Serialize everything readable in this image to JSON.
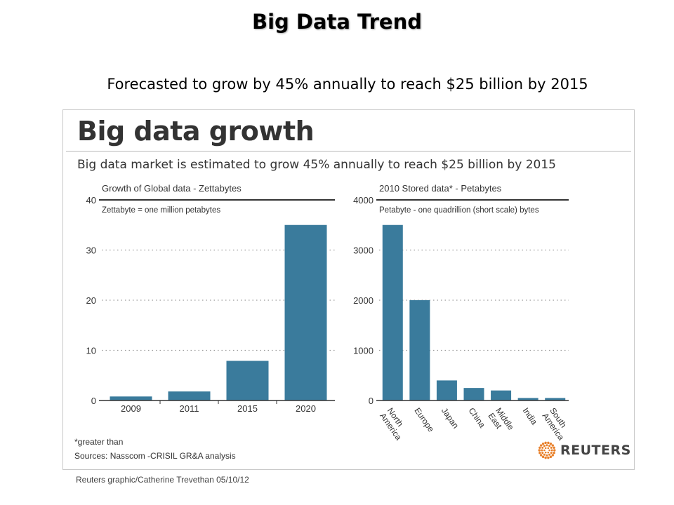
{
  "slide": {
    "title": "Big Data Trend",
    "subtitle": "Forecasted to grow by 45% annually to reach $25 billion by 2015"
  },
  "graphic": {
    "title": "Big data growth",
    "subtitle": "Big data market is estimated to grow 45% annually to reach $25 billion by 2015",
    "footnote": "*greater than",
    "sources": "Sources: Nasscom -CRISIL GR&A analysis",
    "logo_text": "REUTERS",
    "credit": "Reuters graphic/Catherine Trevethan   05/10/12",
    "colors": {
      "bar": "#3a7b9c",
      "grid": "#9a9a9a",
      "axis": "#333333",
      "logo_orange": "#e8802a"
    }
  },
  "chart_data": [
    {
      "type": "bar",
      "title": "Growth of Global data - Zettabytes",
      "subtitle": "Zettabyte = one million petabytes",
      "categories": [
        "2009",
        "2011",
        "2015",
        "2020"
      ],
      "values": [
        0.8,
        1.8,
        7.9,
        35
      ],
      "ylim": [
        0,
        40
      ],
      "yticks": [
        0,
        10,
        20,
        30,
        40
      ],
      "grid": true
    },
    {
      "type": "bar",
      "title": "2010 Stored data* - Petabytes",
      "subtitle": "Petabyte - one quadrillion (short scale) bytes",
      "categories": [
        "North America",
        "Europe",
        "Japan",
        "China",
        "Middle East",
        "India",
        "South America"
      ],
      "values": [
        3500,
        2000,
        400,
        250,
        200,
        50,
        50
      ],
      "ylim": [
        0,
        4000
      ],
      "yticks": [
        0,
        1000,
        2000,
        3000,
        4000
      ],
      "grid": true
    }
  ]
}
